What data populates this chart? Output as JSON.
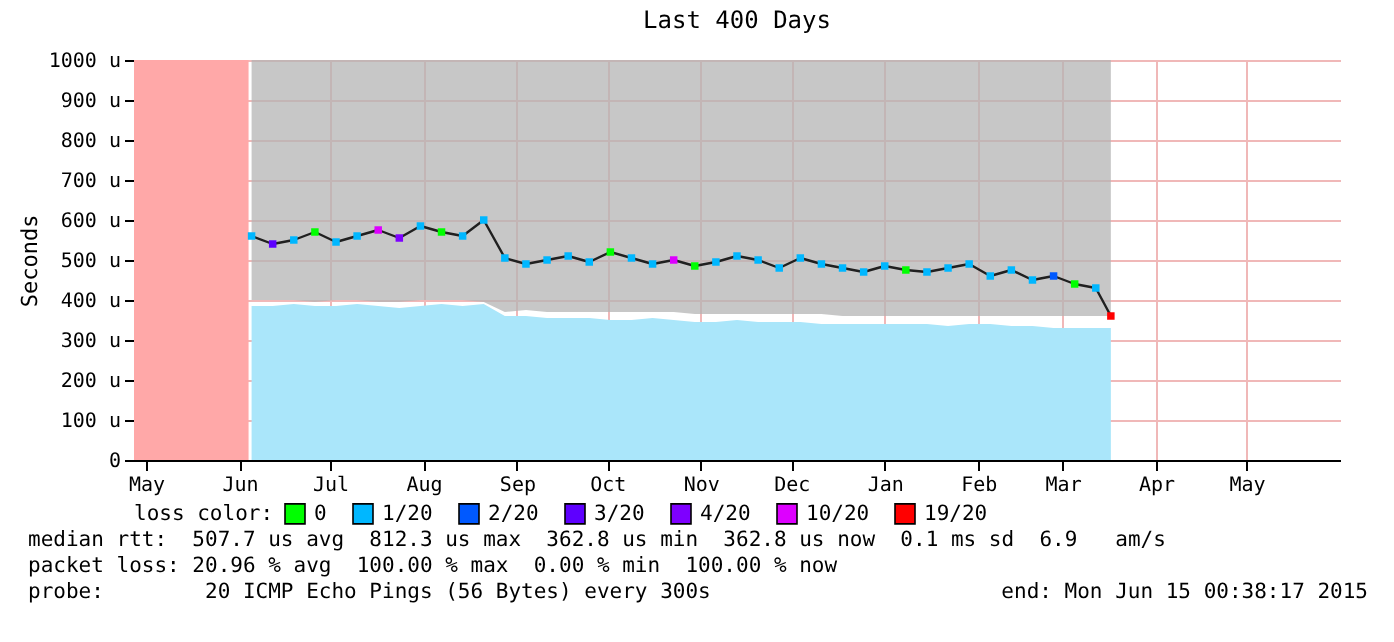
{
  "chart_data": {
    "type": "line",
    "title": "Last 400 Days",
    "ylabel": "Seconds",
    "xlim": [
      "2014-05-11",
      "2015-06-15"
    ],
    "xticks": [
      {
        "value": "2014-05-15",
        "label": "May"
      },
      {
        "value": "2014-06-15",
        "label": "Jun"
      },
      {
        "value": "2014-07-15",
        "label": "Jul"
      },
      {
        "value": "2014-08-15",
        "label": "Aug"
      },
      {
        "value": "2014-09-15",
        "label": "Sep"
      },
      {
        "value": "2014-10-15",
        "label": "Oct"
      },
      {
        "value": "2014-11-15",
        "label": "Nov"
      },
      {
        "value": "2014-12-15",
        "label": "Dec"
      },
      {
        "value": "2015-01-15",
        "label": "Jan"
      },
      {
        "value": "2015-02-15",
        "label": "Feb"
      },
      {
        "value": "2015-03-15",
        "label": "Mar"
      },
      {
        "value": "2015-04-15",
        "label": "Apr"
      },
      {
        "value": "2015-05-15",
        "label": "May"
      }
    ],
    "ylim": [
      0,
      1000
    ],
    "yticks": [
      0,
      {
        "value": 100,
        "label": "100 u"
      },
      {
        "value": 200,
        "label": "200 u"
      },
      {
        "value": 300,
        "label": "300 u"
      },
      {
        "value": 400,
        "label": "400 u"
      },
      {
        "value": 500,
        "label": "500 u"
      },
      {
        "value": 600,
        "label": "600 u"
      },
      {
        "value": 700,
        "label": "700 u"
      },
      {
        "value": 800,
        "label": "800 u"
      },
      {
        "value": 900,
        "label": "900 u"
      },
      {
        "value": 1000,
        "label": "1000 u"
      }
    ],
    "x": [
      "2014-06-19",
      "2014-06-26",
      "2014-07-03",
      "2014-07-10",
      "2014-07-17",
      "2014-07-24",
      "2014-07-31",
      "2014-08-07",
      "2014-08-14",
      "2014-08-21",
      "2014-08-28",
      "2014-09-04",
      "2014-09-11",
      "2014-09-18",
      "2014-09-25",
      "2014-10-02",
      "2014-10-09",
      "2014-10-16",
      "2014-10-23",
      "2014-10-30",
      "2014-11-06",
      "2014-11-13",
      "2014-11-20",
      "2014-11-27",
      "2014-12-04",
      "2014-12-11",
      "2014-12-18",
      "2014-12-25",
      "2015-01-01",
      "2015-01-08",
      "2015-01-15",
      "2015-01-22",
      "2015-01-29",
      "2015-02-05",
      "2015-02-12",
      "2015-02-19",
      "2015-02-26",
      "2015-03-05",
      "2015-03-12",
      "2015-03-19",
      "2015-03-26",
      "2015-03-31"
    ],
    "series": [
      {
        "type": "area",
        "color": "#aae6fa",
        "values": [
          385,
          385,
          390,
          385,
          385,
          390,
          385,
          380,
          385,
          390,
          385,
          390,
          360,
          360,
          355,
          355,
          355,
          350,
          350,
          355,
          350,
          345,
          345,
          350,
          345,
          345,
          345,
          340,
          340,
          340,
          340,
          340,
          340,
          335,
          340,
          340,
          335,
          335,
          330,
          330,
          330,
          330
        ]
      },
      {
        "type": "line",
        "color": "#202020",
        "values": [
          560,
          540,
          550,
          570,
          545,
          560,
          575,
          555,
          585,
          570,
          560,
          600,
          505,
          490,
          500,
          510,
          495,
          520,
          505,
          490,
          500,
          485,
          495,
          510,
          500,
          480,
          505,
          490,
          480,
          470,
          485,
          475,
          470,
          480,
          490,
          460,
          475,
          450,
          460,
          440,
          430,
          360
        ],
        "lower": [
          400,
          400,
          400,
          395,
          400,
          400,
          395,
          395,
          400,
          400,
          400,
          395,
          370,
          375,
          370,
          370,
          370,
          370,
          370,
          370,
          370,
          365,
          365,
          365,
          365,
          365,
          365,
          365,
          360,
          360,
          360,
          360,
          360,
          360,
          360,
          360,
          360,
          360,
          360,
          360,
          360,
          360
        ],
        "upper": [
          1000,
          1000,
          1000,
          1000,
          1000,
          1000,
          1000,
          1000,
          1000,
          1000,
          1000,
          1000,
          1000,
          1000,
          1000,
          1000,
          1000,
          1000,
          1000,
          1000,
          1000,
          1000,
          1000,
          1000,
          1000,
          1000,
          1000,
          1000,
          1000,
          1000,
          1000,
          1000,
          1000,
          1000,
          1000,
          1000,
          1000,
          1000,
          1000,
          1000,
          1000,
          1000
        ]
      },
      {
        "type": "scatter",
        "marker": "square",
        "name": "0",
        "color": "#00ff00",
        "x": [
          "2014-07-10",
          "2014-08-21",
          "2014-10-16",
          "2014-11-13",
          "2015-01-22",
          "2015-03-19"
        ],
        "values": [
          570,
          570,
          520,
          485,
          475,
          440
        ]
      },
      {
        "type": "scatter",
        "marker": "square",
        "name": "1/20",
        "color": "#00b7ff",
        "x": [
          "2014-06-19",
          "2014-07-03",
          "2014-07-17",
          "2014-07-24",
          "2014-08-14",
          "2014-08-28",
          "2014-09-04",
          "2014-09-11",
          "2014-09-18",
          "2014-09-25",
          "2014-10-02",
          "2014-10-09",
          "2014-10-23",
          "2014-10-30",
          "2014-11-20",
          "2014-11-27",
          "2014-12-04",
          "2014-12-11",
          "2014-12-18",
          "2014-12-25",
          "2015-01-01",
          "2015-01-08",
          "2015-01-15",
          "2015-01-29",
          "2015-02-05",
          "2015-02-12",
          "2015-02-19",
          "2015-02-26",
          "2015-03-05",
          "2015-03-26"
        ],
        "values": [
          560,
          550,
          545,
          560,
          585,
          560,
          600,
          505,
          490,
          500,
          510,
          495,
          505,
          490,
          495,
          510,
          500,
          480,
          505,
          490,
          480,
          470,
          485,
          470,
          480,
          490,
          460,
          475,
          450,
          430
        ]
      },
      {
        "type": "scatter",
        "marker": "square",
        "name": "2/20",
        "color": "#0059ff",
        "x": [
          "2015-03-12"
        ],
        "values": [
          460
        ]
      },
      {
        "type": "scatter",
        "marker": "square",
        "name": "3/20",
        "color": "#5e00ff",
        "x": [
          "2014-06-26"
        ],
        "values": [
          540
        ]
      },
      {
        "type": "scatter",
        "marker": "square",
        "name": "4/20",
        "color": "#7e00ff",
        "x": [
          "2014-08-07"
        ],
        "values": [
          555
        ]
      },
      {
        "type": "scatter",
        "marker": "square",
        "name": "10/20",
        "color": "#dd00ff",
        "x": [
          "2014-07-31",
          "2014-11-06"
        ],
        "values": [
          575,
          500
        ]
      },
      {
        "type": "scatter",
        "marker": "square",
        "name": "19/20",
        "color": "#ff0000",
        "x": [
          "2015-03-31"
        ],
        "values": [
          360
        ]
      }
    ],
    "bands": [
      {
        "axis": "x",
        "from": "2014-05-11",
        "to": "2014-06-18",
        "color": "#ffa8a8"
      }
    ],
    "line_style": "solid",
    "grid": true,
    "legend": "bottom",
    "legend_title": "loss color:",
    "annotations": [
      "median rtt:  507.7 us avg  812.3 us max  362.8 us min  362.8 us now  0.1 ms sd  6.9   am/s",
      "packet loss: 20.96 % avg  100.00 % max  0.00 % min  100.00 % now",
      "probe:        20 ICMP Echo Pings (56 Bytes) every 300s",
      "end: Mon Jun 15 00:38:17 2015"
    ]
  }
}
